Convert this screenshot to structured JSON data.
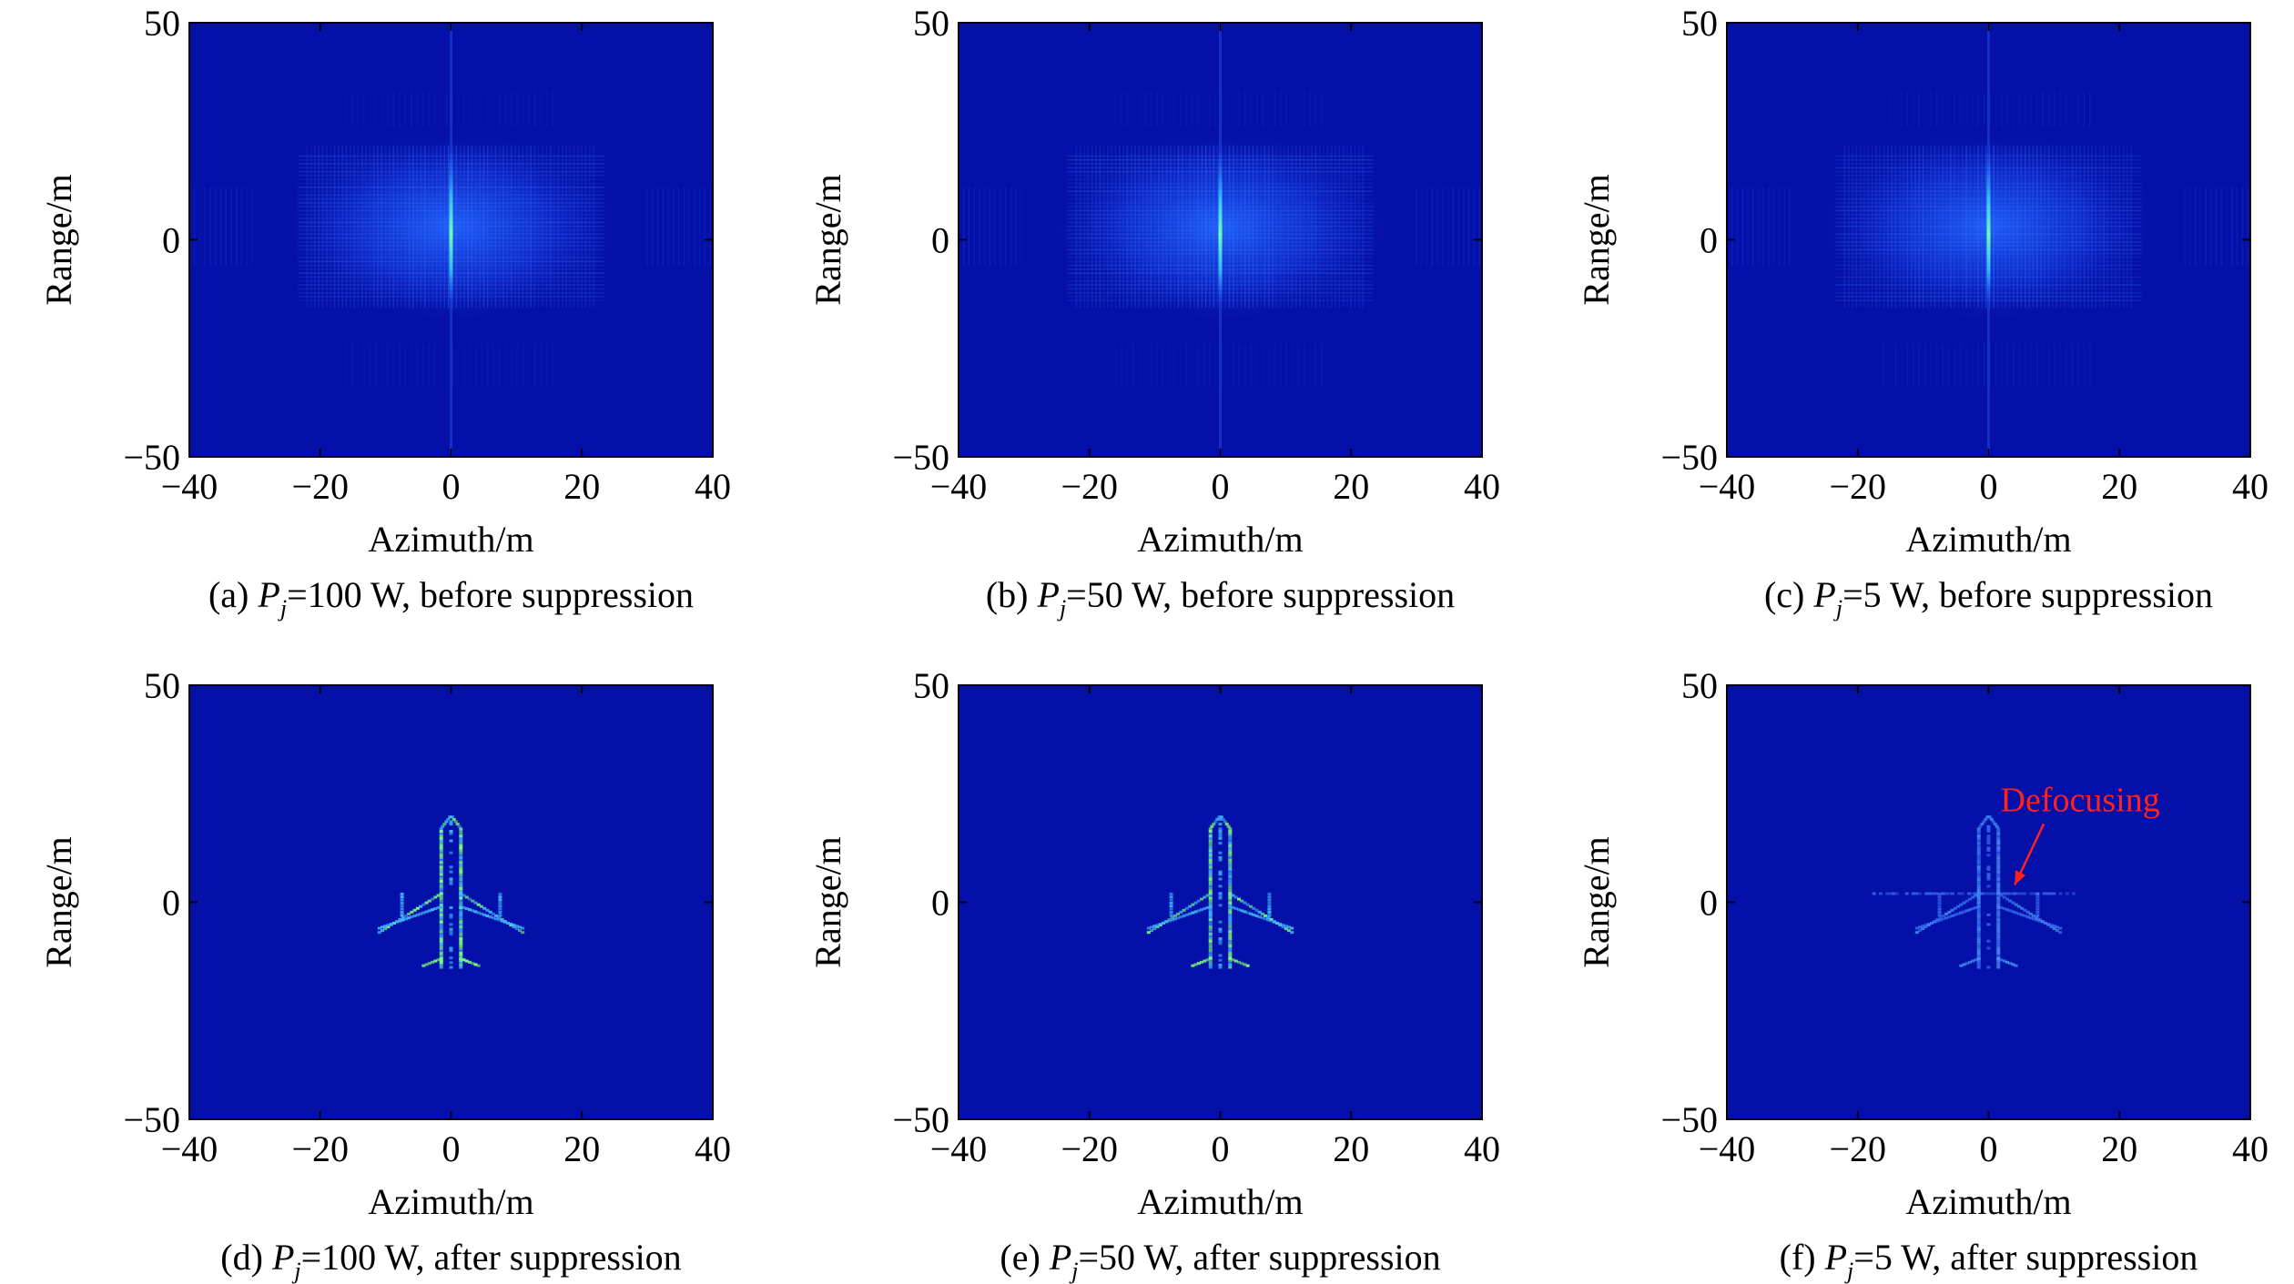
{
  "figure": {
    "colors": {
      "background": "#0510a8",
      "jet_scale": [
        "#00008f",
        "#0000ff",
        "#00ffff",
        "#ffff00",
        "#ff0000"
      ],
      "annotation": "#ff2020"
    }
  },
  "chart_data": [
    {
      "type": "heatmap",
      "panel": "a",
      "caption": {
        "prefix": "(a) ",
        "var": "P",
        "sub": "j",
        "rest": "=100 W, before suppression"
      },
      "xlabel": "Azimuth/m",
      "ylabel": "Range/m",
      "xlim": [
        -40,
        40
      ],
      "ylim": [
        -50,
        50
      ],
      "xticks": [
        -40,
        -20,
        0,
        20,
        40
      ],
      "yticks": [
        -50,
        0,
        50
      ],
      "image_content": "diffuse jamming speckle centered at azimuth 0, range 0",
      "jamming": {
        "azimuth_extent": [
          -22,
          22
        ],
        "range_extent": [
          -14,
          20
        ],
        "sidelobe_azimuth": [
          30,
          40
        ],
        "center_line_azimuth": 0
      },
      "target": null,
      "annotation": null
    },
    {
      "type": "heatmap",
      "panel": "b",
      "caption": {
        "prefix": "(b) ",
        "var": "P",
        "sub": "j",
        "rest": "=50 W, before suppression"
      },
      "xlabel": "Azimuth/m",
      "ylabel": "Range/m",
      "xlim": [
        -40,
        40
      ],
      "ylim": [
        -50,
        50
      ],
      "xticks": [
        -40,
        -20,
        0,
        20,
        40
      ],
      "yticks": [
        -50,
        0,
        50
      ],
      "image_content": "diffuse jamming speckle centered at azimuth 0, range 0",
      "jamming": {
        "azimuth_extent": [
          -22,
          22
        ],
        "range_extent": [
          -14,
          20
        ],
        "sidelobe_azimuth": [
          30,
          40
        ],
        "center_line_azimuth": 0
      },
      "target": null,
      "annotation": null
    },
    {
      "type": "heatmap",
      "panel": "c",
      "caption": {
        "prefix": "(c) ",
        "var": "P",
        "sub": "j",
        "rest": "=5 W, before suppression"
      },
      "xlabel": "Azimuth/m",
      "ylabel": "Range/m",
      "xlim": [
        -40,
        40
      ],
      "ylim": [
        -50,
        50
      ],
      "xticks": [
        -40,
        -20,
        0,
        20,
        40
      ],
      "yticks": [
        -50,
        0,
        50
      ],
      "image_content": "diffuse jamming speckle centered at azimuth 0, range 0",
      "jamming": {
        "azimuth_extent": [
          -22,
          22
        ],
        "range_extent": [
          -14,
          20
        ],
        "sidelobe_azimuth": [
          30,
          40
        ],
        "center_line_azimuth": 0
      },
      "target": null,
      "annotation": null
    },
    {
      "type": "heatmap",
      "panel": "d",
      "caption": {
        "prefix": "(d) ",
        "var": "P",
        "sub": "j",
        "rest": "=100 W, after suppression"
      },
      "xlabel": "Azimuth/m",
      "ylabel": "Range/m",
      "xlim": [
        -40,
        40
      ],
      "ylim": [
        -50,
        50
      ],
      "xticks": [
        -40,
        -20,
        0,
        20,
        40
      ],
      "yticks": [
        -50,
        0,
        50
      ],
      "image_content": "focused aircraft target",
      "jamming": null,
      "target": {
        "shape": "aircraft",
        "nose_range": 20,
        "tail_range": -15,
        "wingspan": [
          -11,
          11
        ],
        "wing_range": [
          -9,
          2
        ],
        "defocus_streak": null,
        "intensity": 1.0
      },
      "annotation": null
    },
    {
      "type": "heatmap",
      "panel": "e",
      "caption": {
        "prefix": "(e) ",
        "var": "P",
        "sub": "j",
        "rest": "=50 W, after suppression"
      },
      "xlabel": "Azimuth/m",
      "ylabel": "Range/m",
      "xlim": [
        -40,
        40
      ],
      "ylim": [
        -50,
        50
      ],
      "xticks": [
        -40,
        -20,
        0,
        20,
        40
      ],
      "yticks": [
        -50,
        0,
        50
      ],
      "image_content": "focused aircraft target",
      "jamming": null,
      "target": {
        "shape": "aircraft",
        "nose_range": 20,
        "tail_range": -15,
        "wingspan": [
          -11,
          11
        ],
        "wing_range": [
          -9,
          2
        ],
        "defocus_streak": null,
        "intensity": 0.85
      },
      "annotation": null
    },
    {
      "type": "heatmap",
      "panel": "f",
      "caption": {
        "prefix": "(f) ",
        "var": "P",
        "sub": "j",
        "rest": "=5 W, after suppression"
      },
      "xlabel": "Azimuth/m",
      "ylabel": "Range/m",
      "xlim": [
        -40,
        40
      ],
      "ylim": [
        -50,
        50
      ],
      "xticks": [
        -40,
        -20,
        0,
        20,
        40
      ],
      "yticks": [
        -50,
        0,
        50
      ],
      "image_content": "partially defocused aircraft target",
      "jamming": null,
      "target": {
        "shape": "aircraft",
        "nose_range": 20,
        "tail_range": -15,
        "wingspan": [
          -11,
          11
        ],
        "wing_range": [
          -9,
          2
        ],
        "defocus_streak": {
          "azimuth": [
            -19,
            14
          ],
          "range": 2
        },
        "intensity": 0.45
      },
      "annotation": {
        "text": "Defocusing",
        "text_at": [
          14,
          21
        ],
        "arrow_to": [
          4,
          4
        ]
      }
    }
  ]
}
